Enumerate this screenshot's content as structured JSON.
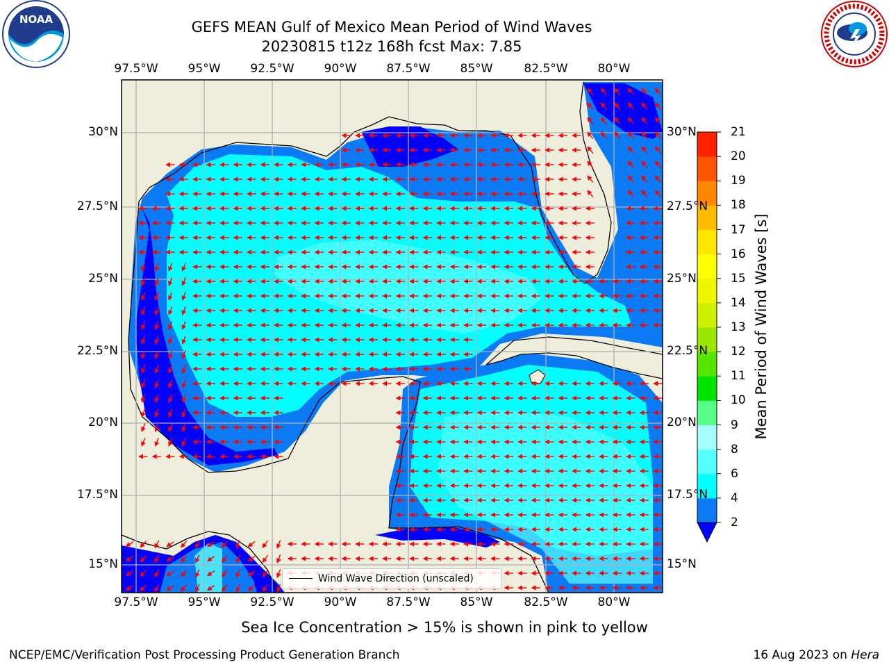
{
  "title": {
    "line1": "GEFS MEAN Gulf of Mexico Mean Period of Wind Waves",
    "line2": "20230815 t12z 168h fcst   Max: 7.85"
  },
  "map": {
    "lon_ticks": [
      "97.5°W",
      "95°W",
      "92.5°W",
      "90°W",
      "87.5°W",
      "85°W",
      "82.5°W",
      "80°W"
    ],
    "lat_ticks_left": [
      "30°N",
      "27.5°N",
      "25°N",
      "22.5°N",
      "20°N",
      "17.5°N",
      "15°N"
    ],
    "lat_ticks_right": [
      "30°N",
      "27.5°N",
      "25°N",
      "22.5°N",
      "20°N",
      "17.5°N",
      "15°N"
    ],
    "lon_range": [
      -98,
      -78.3
    ],
    "lat_range": [
      14,
      31.9
    ],
    "colors": {
      "land": "#efeddc",
      "band_2_4": "#0a7af5",
      "band_4_6": "#00ffff",
      "band_6_8": "#55ffff",
      "band_lt_2": "#0000ff",
      "arrow": "#ff0000"
    }
  },
  "legend": {
    "label": "Wind Wave Direction (unscaled)"
  },
  "colorbar": {
    "label": "Mean Period of Wind Waves [s]",
    "ticks": [
      "2",
      "4",
      "6",
      "8",
      "9",
      "10",
      "11",
      "12",
      "13",
      "14",
      "15",
      "16",
      "17",
      "18",
      "19",
      "20",
      "21"
    ],
    "colors": [
      "#0a7af5",
      "#00ffff",
      "#55ffff",
      "#a6ffff",
      "#55ff88",
      "#00e600",
      "#55e600",
      "#99e600",
      "#ccf000",
      "#eef500",
      "#ffff00",
      "#ffe600",
      "#ffbb00",
      "#ff8800",
      "#ff5500",
      "#ff2200"
    ],
    "extend_color": "#0000ff"
  },
  "footnote": "Sea Ice Concentration > 15% is shown in pink to yellow",
  "credit": "NCEP/EMC/Verification Post Processing Product Generation Branch",
  "date_text": "16 Aug 2023 on ",
  "machine": "Hera"
}
